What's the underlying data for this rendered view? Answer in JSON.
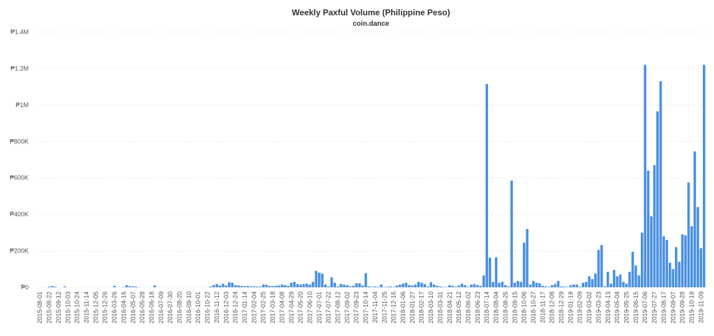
{
  "chart_data": {
    "type": "bar",
    "title": "Weekly Paxful Volume (Philippine Peso)",
    "subtitle": "coin.dance",
    "color": "#4a90e2",
    "grid": true,
    "ylim": [
      0,
      1400000
    ],
    "yticks": [
      {
        "value": 0,
        "label": "₱0"
      },
      {
        "value": 200000,
        "label": "₱200K"
      },
      {
        "value": 400000,
        "label": "₱400K"
      },
      {
        "value": 600000,
        "label": "₱600K"
      },
      {
        "value": 800000,
        "label": "₱800K"
      },
      {
        "value": 1000000,
        "label": "₱1M"
      },
      {
        "value": 1200000,
        "label": "₱1.2M"
      },
      {
        "value": 1400000,
        "label": "₱1.4M"
      }
    ],
    "categories": [
      "2015-08-01",
      null,
      null,
      "2015-08-22",
      null,
      null,
      "2015-09-12",
      null,
      null,
      "2015-10-03",
      null,
      null,
      "2015-10-24",
      null,
      null,
      "2015-11-14",
      null,
      null,
      "2015-12-05",
      null,
      null,
      "2015-12-26",
      null,
      null,
      "2016-03-26",
      null,
      null,
      "2016-04-16",
      null,
      null,
      "2016-05-07",
      null,
      null,
      "2016-05-28",
      null,
      null,
      "2016-06-18",
      null,
      null,
      "2016-07-09",
      null,
      null,
      "2016-07-30",
      null,
      null,
      "2016-08-20",
      null,
      null,
      "2016-09-10",
      null,
      null,
      "2016-10-01",
      null,
      null,
      "2016-10-22",
      null,
      null,
      "2016-11-12",
      null,
      null,
      "2016-12-03",
      null,
      null,
      "2016-12-24",
      null,
      null,
      "2017-01-14",
      null,
      null,
      "2017-02-04",
      null,
      null,
      "2017-02-25",
      null,
      null,
      "2017-03-18",
      null,
      null,
      "2017-04-08",
      null,
      null,
      "2017-04-29",
      null,
      null,
      "2017-05-20",
      null,
      null,
      "2017-06-10",
      null,
      null,
      "2017-07-01",
      null,
      null,
      "2017-07-22",
      null,
      null,
      "2017-08-12",
      null,
      null,
      "2017-09-02",
      null,
      null,
      "2017-09-23",
      null,
      null,
      "2017-10-14",
      null,
      null,
      "2017-11-04",
      null,
      null,
      "2017-11-25",
      null,
      null,
      "2017-12-16",
      null,
      null,
      "2018-01-06",
      null,
      null,
      "2018-01-27",
      null,
      null,
      "2018-02-17",
      null,
      null,
      "2018-03-10",
      null,
      null,
      "2018-03-31",
      null,
      null,
      "2018-04-21",
      null,
      null,
      "2018-05-12",
      null,
      null,
      "2018-06-02",
      null,
      null,
      "2018-06-23",
      null,
      null,
      "2018-07-14",
      null,
      null,
      "2018-08-04",
      null,
      null,
      "2018-08-25",
      null,
      null,
      "2018-09-15",
      null,
      null,
      "2018-10-06",
      null,
      null,
      "2018-10-27",
      null,
      null,
      "2018-11-17",
      null,
      null,
      "2018-12-08",
      null,
      null,
      "2018-12-29",
      null,
      null,
      "2019-01-19",
      null,
      null,
      "2019-02-09",
      null,
      null,
      "2019-03-02",
      null,
      null,
      "2019-03-23",
      null,
      null,
      "2019-04-13",
      null,
      null,
      "2019-05-04",
      null,
      null,
      "2019-05-25",
      null,
      null,
      "2019-06-15",
      null,
      null,
      "2019-07-06",
      null,
      null,
      "2019-07-27",
      null,
      null,
      "2019-08-17",
      null,
      null,
      "2019-09-07",
      null,
      null,
      "2019-09-28",
      null,
      null,
      "2019-10-19",
      null,
      null,
      "2019-11-09",
      null
    ],
    "values": [
      0,
      0,
      0,
      4000,
      7000,
      3000,
      0,
      0,
      5000,
      0,
      0,
      0,
      0,
      0,
      0,
      0,
      0,
      0,
      0,
      0,
      0,
      0,
      0,
      0,
      8000,
      0,
      0,
      2000,
      12000,
      6000,
      5000,
      4000,
      1000,
      0,
      0,
      0,
      0,
      10000,
      0,
      0,
      0,
      0,
      0,
      0,
      0,
      0,
      0,
      0,
      0,
      0,
      0,
      0,
      0,
      0,
      0,
      5000,
      12000,
      18000,
      10000,
      20000,
      10000,
      28000,
      25000,
      12000,
      10000,
      8000,
      6000,
      8000,
      5000,
      6000,
      4000,
      4000,
      15000,
      14000,
      8000,
      6000,
      8000,
      10000,
      15000,
      12000,
      8000,
      25000,
      30000,
      18000,
      15000,
      18000,
      20000,
      15000,
      30000,
      90000,
      80000,
      75000,
      15000,
      5000,
      55000,
      25000,
      5000,
      18000,
      15000,
      12000,
      6000,
      8000,
      22000,
      22000,
      10000,
      78000,
      5000,
      3000,
      5000,
      3000,
      15000,
      2000,
      3000,
      5000,
      2000,
      10000,
      15000,
      20000,
      25000,
      12000,
      10000,
      15000,
      30000,
      25000,
      18000,
      5000,
      28000,
      15000,
      8000,
      5000,
      2000,
      2000,
      12000,
      8000,
      3000,
      10000,
      20000,
      12000,
      3000,
      15000,
      18000,
      12000,
      8000,
      65000,
      1115000,
      162000,
      30000,
      165000,
      25000,
      30000,
      12000,
      5000,
      585000,
      25000,
      35000,
      30000,
      245000,
      320000,
      15000,
      35000,
      25000,
      22000,
      8000,
      5000,
      3000,
      12000,
      18000,
      35000,
      5000,
      4000,
      2000,
      12000,
      15000,
      15000,
      3000,
      25000,
      30000,
      60000,
      45000,
      75000,
      205000,
      232000,
      5000,
      85000,
      20000,
      95000,
      60000,
      70000,
      30000,
      20000,
      85000,
      195000,
      120000,
      65000,
      300000,
      1220000,
      640000,
      390000,
      670000,
      965000,
      1130000,
      280000,
      260000,
      135000,
      100000,
      220000,
      140000,
      290000,
      285000,
      575000,
      335000,
      745000,
      440000,
      215000,
      1220000
    ]
  }
}
